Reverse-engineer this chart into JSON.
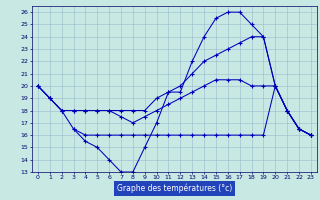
{
  "bg_color": "#c8e8e4",
  "line_color": "#0000bb",
  "grid_color": "#99bbcc",
  "xlabel": "Graphe des températures (°c)",
  "xlabel_bg": "#2244bb",
  "xlim": [
    -0.5,
    23.5
  ],
  "ylim": [
    13,
    26.5
  ],
  "yticks": [
    13,
    14,
    15,
    16,
    17,
    18,
    19,
    20,
    21,
    22,
    23,
    24,
    25,
    26
  ],
  "xticks": [
    0,
    1,
    2,
    3,
    4,
    5,
    6,
    7,
    8,
    9,
    10,
    11,
    12,
    13,
    14,
    15,
    16,
    17,
    18,
    19,
    20,
    21,
    22,
    23
  ],
  "lines": [
    {
      "x": [
        0,
        1,
        2,
        3,
        4,
        5,
        6,
        7,
        8,
        9,
        10,
        11,
        12,
        13,
        14,
        15,
        16,
        17,
        18,
        19,
        20,
        21,
        22,
        23
      ],
      "y": [
        20,
        19,
        18,
        16.5,
        15.5,
        15,
        14,
        13,
        13,
        15,
        17,
        19.5,
        19.5,
        22,
        24,
        25.5,
        26,
        26,
        25,
        24,
        20,
        18,
        16.5,
        16
      ]
    },
    {
      "x": [
        0,
        1,
        2,
        3,
        4,
        5,
        6,
        7,
        8,
        9,
        10,
        11,
        12,
        13,
        14,
        15,
        16,
        17,
        18,
        19,
        20,
        21,
        22,
        23
      ],
      "y": [
        20,
        19,
        18,
        18,
        18,
        18,
        18,
        18,
        18,
        18,
        19,
        19.5,
        20,
        21,
        22,
        22.5,
        23,
        23.5,
        24,
        24,
        20,
        18,
        16.5,
        16
      ]
    },
    {
      "x": [
        3,
        4,
        5,
        6,
        7,
        8,
        9,
        10,
        11,
        12,
        13,
        14,
        15,
        16,
        17,
        18,
        19,
        20,
        21,
        22,
        23
      ],
      "y": [
        16.5,
        16,
        16,
        16,
        16,
        16,
        16,
        16,
        16,
        16,
        16,
        16,
        16,
        16,
        16,
        16,
        16,
        20,
        18,
        16.5,
        16
      ]
    },
    {
      "x": [
        0,
        1,
        2,
        3,
        4,
        5,
        6,
        7,
        8,
        9,
        10,
        11,
        12,
        13,
        14,
        15,
        16,
        17,
        18,
        19,
        20,
        21,
        22,
        23
      ],
      "y": [
        20,
        19,
        18,
        18,
        18,
        18,
        18,
        17.5,
        17,
        17.5,
        18,
        18.5,
        19,
        19.5,
        20,
        20.5,
        20.5,
        20.5,
        20,
        20,
        20,
        18,
        16.5,
        16
      ]
    }
  ]
}
